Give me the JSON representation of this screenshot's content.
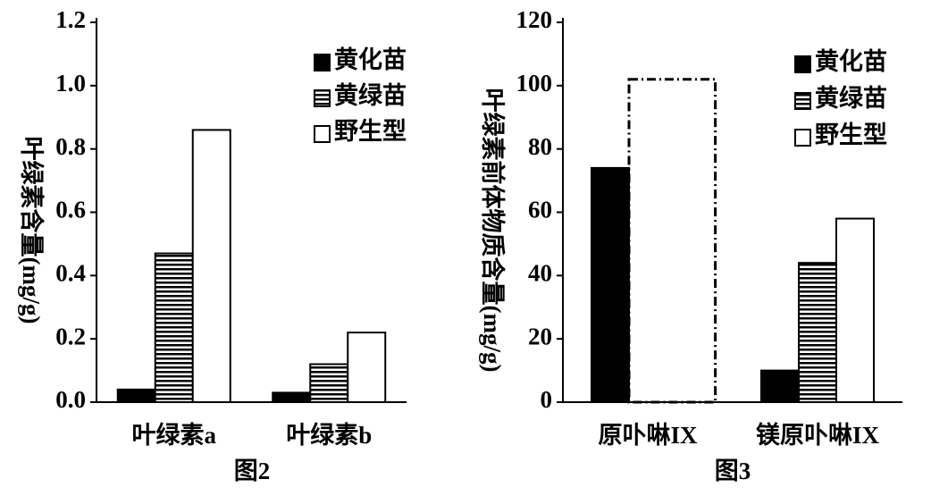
{
  "chart_data": [
    {
      "type": "bar",
      "caption": "图2",
      "ylabel": "叶绿素含量(mg/g)",
      "categories": [
        "叶绿素a",
        "叶绿素b"
      ],
      "series": [
        {
          "name": "黄化苗",
          "color": "#000000",
          "fill": "solid",
          "values": [
            0.04,
            0.03
          ]
        },
        {
          "name": "黄绿苗",
          "color": "#000000",
          "fill": "striped",
          "values": [
            0.47,
            0.12
          ]
        },
        {
          "name": "野生型",
          "color": "#ffffff",
          "fill": "solid",
          "values": [
            0.86,
            0.22
          ]
        }
      ],
      "ylim": [
        0,
        1.2
      ],
      "yticks": [
        {
          "value": 0,
          "label": "0.0"
        },
        0.2,
        0.4,
        0.6,
        0.8,
        {
          "value": 1,
          "label": "1.0"
        },
        1.2
      ],
      "legend": "top-right"
    },
    {
      "type": "bar",
      "caption": "图3",
      "ylabel": "叶绿素前体物质含量(mg/g)",
      "categories": [
        "原卟啉IX",
        "镁原卟啉IX"
      ],
      "series": [
        {
          "name": "黄化苗",
          "color": "#000000",
          "fill": "solid",
          "values": [
            74,
            10
          ]
        },
        {
          "name": "黄绿苗",
          "color": "#000000",
          "fill": "striped",
          "values": [
            102,
            44
          ],
          "dashed": [
            true,
            false
          ]
        },
        {
          "name": "野生型",
          "color": "#ffffff",
          "fill": "solid",
          "values": [
            null,
            58
          ]
        }
      ],
      "ylim": [
        0,
        120
      ],
      "yticks": [
        0,
        20,
        40,
        60,
        80,
        100,
        120
      ],
      "legend": "top-right"
    }
  ]
}
